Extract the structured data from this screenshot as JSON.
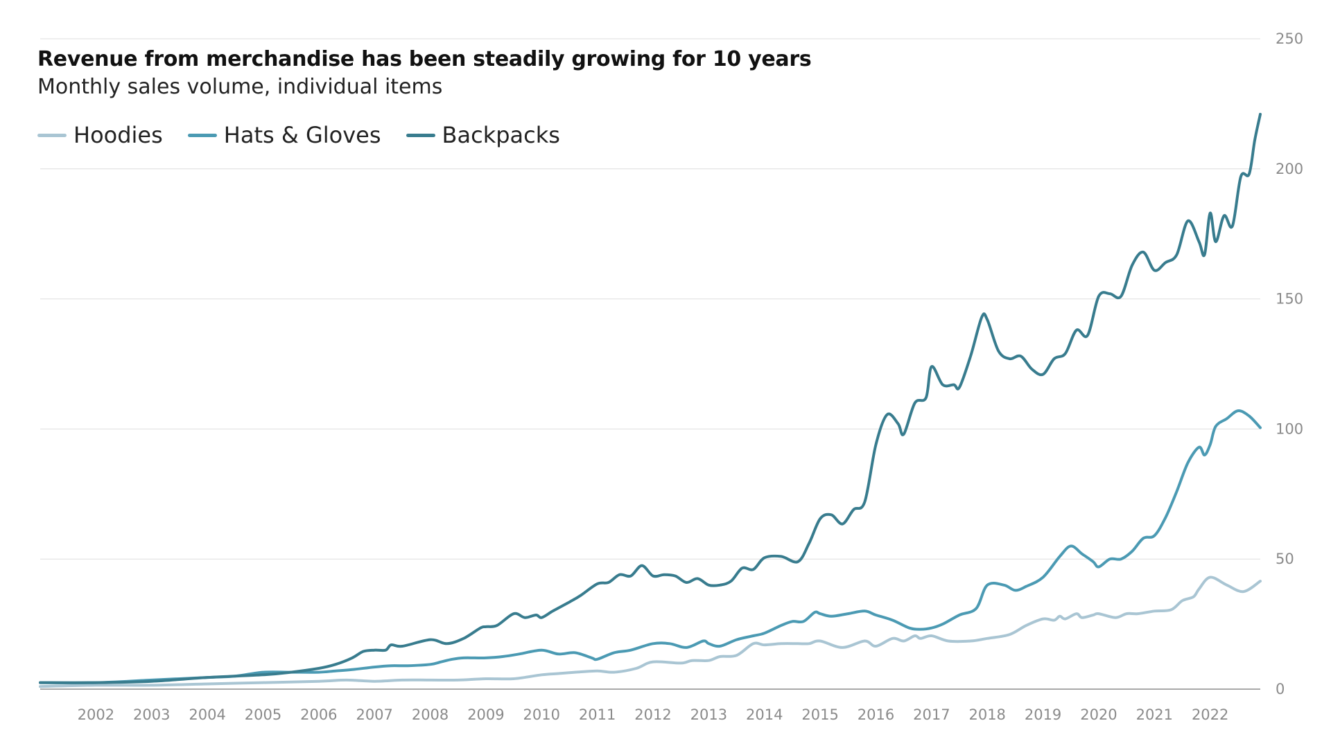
{
  "chart_data": {
    "type": "line",
    "title": "Revenue from merchandise has been steadily growing for 10 years",
    "subtitle": "Monthly sales volume, individual items",
    "xlabel": "",
    "ylabel": "",
    "xlim": [
      2001,
      2022.9
    ],
    "ylim": [
      0,
      250
    ],
    "yticks": [
      0,
      50,
      100,
      150,
      200,
      250
    ],
    "xticks": [
      2002,
      2003,
      2004,
      2005,
      2006,
      2007,
      2008,
      2009,
      2010,
      2011,
      2012,
      2013,
      2014,
      2015,
      2016,
      2017,
      2018,
      2019,
      2020,
      2021,
      2022
    ],
    "grid": "horizontal",
    "y_axis_position": "right",
    "legend_position": "top-left",
    "series": [
      {
        "name": "Hoodies",
        "color": "#a9c5d3",
        "points": [
          [
            2001.0,
            1
          ],
          [
            2002.0,
            1.5
          ],
          [
            2003.0,
            1.5
          ],
          [
            2004.0,
            2
          ],
          [
            2005.0,
            2.5
          ],
          [
            2006.0,
            3
          ],
          [
            2006.5,
            3.5
          ],
          [
            2007.0,
            3
          ],
          [
            2007.5,
            3.5
          ],
          [
            2008.0,
            3.5
          ],
          [
            2008.5,
            3.5
          ],
          [
            2009.0,
            4
          ],
          [
            2009.5,
            4
          ],
          [
            2010.0,
            5.5
          ],
          [
            2010.3,
            6
          ],
          [
            2010.6,
            6.5
          ],
          [
            2011.0,
            7
          ],
          [
            2011.3,
            6.5
          ],
          [
            2011.7,
            8
          ],
          [
            2012.0,
            10.5
          ],
          [
            2012.5,
            10
          ],
          [
            2012.7,
            11
          ],
          [
            2013.0,
            11
          ],
          [
            2013.2,
            12.5
          ],
          [
            2013.5,
            13
          ],
          [
            2013.8,
            17.5
          ],
          [
            2014.0,
            17
          ],
          [
            2014.3,
            17.5
          ],
          [
            2014.6,
            17.5
          ],
          [
            2014.8,
            17.5
          ],
          [
            2015.0,
            18.5
          ],
          [
            2015.4,
            16
          ],
          [
            2015.8,
            18.5
          ],
          [
            2016.0,
            16.5
          ],
          [
            2016.3,
            19.5
          ],
          [
            2016.5,
            18.5
          ],
          [
            2016.7,
            20.5
          ],
          [
            2016.8,
            19.5
          ],
          [
            2017.0,
            20.5
          ],
          [
            2017.3,
            18.5
          ],
          [
            2017.7,
            18.5
          ],
          [
            2018.0,
            19.5
          ],
          [
            2018.4,
            21
          ],
          [
            2018.7,
            24.5
          ],
          [
            2019.0,
            27
          ],
          [
            2019.2,
            26.5
          ],
          [
            2019.3,
            28
          ],
          [
            2019.4,
            27
          ],
          [
            2019.6,
            29
          ],
          [
            2019.7,
            27.5
          ],
          [
            2019.9,
            28.5
          ],
          [
            2020.0,
            29
          ],
          [
            2020.3,
            27.5
          ],
          [
            2020.5,
            29
          ],
          [
            2020.7,
            29
          ],
          [
            2021.0,
            30
          ],
          [
            2021.3,
            30.5
          ],
          [
            2021.5,
            34
          ],
          [
            2021.7,
            35.5
          ],
          [
            2021.8,
            38.5
          ],
          [
            2022.0,
            43
          ],
          [
            2022.3,
            40
          ],
          [
            2022.6,
            37.5
          ],
          [
            2022.9,
            41.5
          ]
        ]
      },
      {
        "name": "Hats & Gloves",
        "color": "#4b9ab3",
        "points": [
          [
            2001.0,
            2.5
          ],
          [
            2002.0,
            2.5
          ],
          [
            2003.0,
            3.5
          ],
          [
            2004.0,
            4.5
          ],
          [
            2004.5,
            5
          ],
          [
            2005.0,
            6.5
          ],
          [
            2005.5,
            6.5
          ],
          [
            2006.0,
            6.5
          ],
          [
            2006.3,
            7
          ],
          [
            2006.6,
            7.5
          ],
          [
            2007.0,
            8.5
          ],
          [
            2007.3,
            9
          ],
          [
            2007.6,
            9
          ],
          [
            2008.0,
            9.5
          ],
          [
            2008.2,
            10.5
          ],
          [
            2008.4,
            11.5
          ],
          [
            2008.6,
            12
          ],
          [
            2008.8,
            12
          ],
          [
            2009.0,
            12
          ],
          [
            2009.3,
            12.5
          ],
          [
            2009.6,
            13.5
          ],
          [
            2010.0,
            15
          ],
          [
            2010.3,
            13.5
          ],
          [
            2010.6,
            14
          ],
          [
            2010.9,
            12
          ],
          [
            2011.0,
            11.5
          ],
          [
            2011.3,
            14
          ],
          [
            2011.6,
            15
          ],
          [
            2012.0,
            17.5
          ],
          [
            2012.3,
            17.5
          ],
          [
            2012.6,
            16
          ],
          [
            2012.9,
            18.5
          ],
          [
            2013.0,
            17.5
          ],
          [
            2013.2,
            16.5
          ],
          [
            2013.5,
            19
          ],
          [
            2013.8,
            20.5
          ],
          [
            2014.0,
            21.5
          ],
          [
            2014.3,
            24.5
          ],
          [
            2014.5,
            26
          ],
          [
            2014.7,
            26
          ],
          [
            2014.9,
            29.5
          ],
          [
            2015.0,
            29
          ],
          [
            2015.2,
            28
          ],
          [
            2015.5,
            29
          ],
          [
            2015.8,
            30
          ],
          [
            2016.0,
            28.5
          ],
          [
            2016.3,
            26.5
          ],
          [
            2016.6,
            23.5
          ],
          [
            2016.8,
            23
          ],
          [
            2017.0,
            23.5
          ],
          [
            2017.2,
            25
          ],
          [
            2017.5,
            28.5
          ],
          [
            2017.8,
            31
          ],
          [
            2018.0,
            40
          ],
          [
            2018.3,
            40
          ],
          [
            2018.5,
            38
          ],
          [
            2018.7,
            39.5
          ],
          [
            2019.0,
            43
          ],
          [
            2019.3,
            51
          ],
          [
            2019.5,
            55
          ],
          [
            2019.7,
            52
          ],
          [
            2019.9,
            49
          ],
          [
            2020.0,
            47
          ],
          [
            2020.2,
            50
          ],
          [
            2020.4,
            50
          ],
          [
            2020.6,
            53
          ],
          [
            2020.8,
            58
          ],
          [
            2021.0,
            59
          ],
          [
            2021.2,
            66
          ],
          [
            2021.4,
            76
          ],
          [
            2021.6,
            87
          ],
          [
            2021.8,
            93
          ],
          [
            2021.9,
            90
          ],
          [
            2022.0,
            94
          ],
          [
            2022.1,
            101
          ],
          [
            2022.3,
            104
          ],
          [
            2022.5,
            107
          ],
          [
            2022.7,
            105
          ],
          [
            2022.9,
            100.5
          ]
        ]
      },
      {
        "name": "Backpacks",
        "color": "#387c8e",
        "points": [
          [
            2001.0,
            2.5
          ],
          [
            2002.0,
            2.5
          ],
          [
            2003.0,
            3
          ],
          [
            2004.0,
            4.5
          ],
          [
            2005.0,
            5.5
          ],
          [
            2005.5,
            6.5
          ],
          [
            2006.0,
            8
          ],
          [
            2006.3,
            9.5
          ],
          [
            2006.6,
            12
          ],
          [
            2006.8,
            14.5
          ],
          [
            2007.0,
            15
          ],
          [
            2007.2,
            15
          ],
          [
            2007.3,
            17
          ],
          [
            2007.5,
            16.5
          ],
          [
            2008.0,
            19
          ],
          [
            2008.3,
            17.5
          ],
          [
            2008.6,
            19.5
          ],
          [
            2008.9,
            23.5
          ],
          [
            2009.0,
            24
          ],
          [
            2009.2,
            24.5
          ],
          [
            2009.5,
            29
          ],
          [
            2009.7,
            27.5
          ],
          [
            2009.9,
            28.5
          ],
          [
            2010.0,
            27.5
          ],
          [
            2010.2,
            30
          ],
          [
            2010.5,
            33.5
          ],
          [
            2010.7,
            36
          ],
          [
            2011.0,
            40.5
          ],
          [
            2011.2,
            41
          ],
          [
            2011.4,
            44
          ],
          [
            2011.6,
            43.5
          ],
          [
            2011.8,
            47.5
          ],
          [
            2012.0,
            43.5
          ],
          [
            2012.2,
            44
          ],
          [
            2012.4,
            43.5
          ],
          [
            2012.6,
            41
          ],
          [
            2012.8,
            42.5
          ],
          [
            2013.0,
            40
          ],
          [
            2013.2,
            40
          ],
          [
            2013.4,
            41.5
          ],
          [
            2013.6,
            46.5
          ],
          [
            2013.8,
            46
          ],
          [
            2014.0,
            50.5
          ],
          [
            2014.3,
            51
          ],
          [
            2014.6,
            49
          ],
          [
            2014.8,
            56
          ],
          [
            2015.0,
            65.5
          ],
          [
            2015.2,
            67
          ],
          [
            2015.4,
            63.5
          ],
          [
            2015.6,
            69
          ],
          [
            2015.8,
            72
          ],
          [
            2016.0,
            94
          ],
          [
            2016.2,
            105.5
          ],
          [
            2016.4,
            102
          ],
          [
            2016.5,
            98
          ],
          [
            2016.7,
            110
          ],
          [
            2016.9,
            112
          ],
          [
            2017.0,
            124
          ],
          [
            2017.2,
            117
          ],
          [
            2017.4,
            117
          ],
          [
            2017.5,
            116
          ],
          [
            2017.7,
            128
          ],
          [
            2017.9,
            143
          ],
          [
            2018.0,
            142
          ],
          [
            2018.2,
            130
          ],
          [
            2018.4,
            127
          ],
          [
            2018.6,
            128
          ],
          [
            2018.8,
            123
          ],
          [
            2019.0,
            121
          ],
          [
            2019.2,
            127
          ],
          [
            2019.4,
            129
          ],
          [
            2019.6,
            138
          ],
          [
            2019.8,
            136
          ],
          [
            2020.0,
            151
          ],
          [
            2020.2,
            152
          ],
          [
            2020.4,
            151
          ],
          [
            2020.6,
            163
          ],
          [
            2020.8,
            168
          ],
          [
            2021.0,
            161
          ],
          [
            2021.2,
            164
          ],
          [
            2021.4,
            167
          ],
          [
            2021.6,
            180
          ],
          [
            2021.8,
            172
          ],
          [
            2021.9,
            167
          ],
          [
            2022.0,
            183
          ],
          [
            2022.1,
            172
          ],
          [
            2022.25,
            182
          ],
          [
            2022.4,
            178
          ],
          [
            2022.55,
            197
          ],
          [
            2022.7,
            198
          ],
          [
            2022.8,
            211
          ],
          [
            2022.9,
            221
          ]
        ]
      }
    ]
  }
}
